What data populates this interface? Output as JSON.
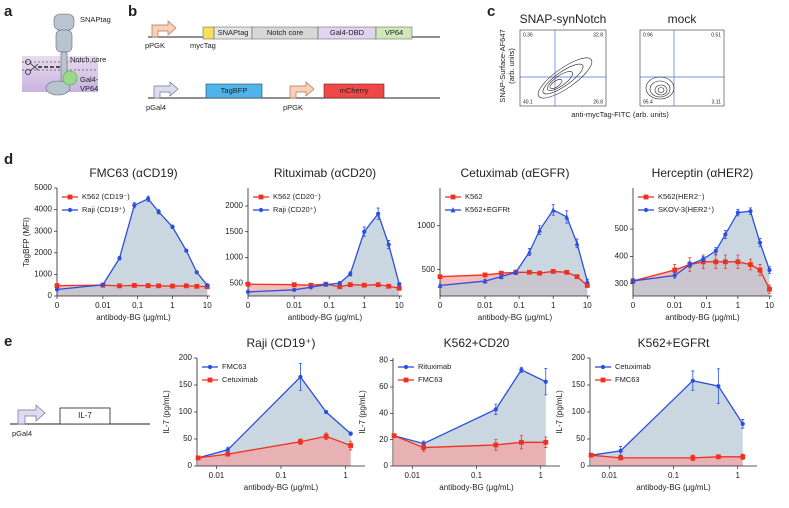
{
  "panel_labels": [
    "a",
    "b",
    "c",
    "d",
    "e"
  ],
  "panel_a": {
    "labels": [
      "SNAPtag",
      "Notch core",
      "Gal4-",
      "VP64"
    ]
  },
  "panel_b": {
    "top": [
      "pPGK",
      "mycTag",
      "SNAPtag",
      "Notch core",
      "Gal4-DBD",
      "VP64"
    ],
    "bottom": [
      "pGal4",
      "TagBFP",
      "pPGK",
      "mCherry"
    ]
  },
  "panel_c": {
    "titles": [
      "SNAP-synNotch",
      "mock"
    ],
    "ylabel": "SNAP-Surface-AF647",
    "ylabel2": "(arb. units)",
    "xlabel": "anti-mycTag-FITC (arb. units)",
    "left_quadrants": [
      "0.36",
      "32.8",
      "40.1",
      "26.8"
    ],
    "right_quadrants": [
      "0.96",
      "0.51",
      "95.4",
      "3.11"
    ]
  },
  "panel_e": {
    "labels": [
      "pGal4",
      "IL-7"
    ]
  },
  "chart_data": [
    {
      "type": "line",
      "title": "FMC63 (αCD19)",
      "xlabel": "antibody-BG (μg/mL)",
      "ylabel": "TagBFP (MFI)",
      "xscale": "log",
      "x": [
        0,
        0.01,
        0.03,
        0.08,
        0.2,
        0.4,
        1,
        2.5,
        5,
        10
      ],
      "xlim": [
        0,
        12
      ],
      "xticks": [
        0,
        0.01,
        0.1,
        1,
        10
      ],
      "ylim": [
        0,
        5000
      ],
      "yticks": [
        0,
        1000,
        2000,
        3000,
        4000,
        5000
      ],
      "legend": "upper left",
      "series": [
        {
          "name": "K562 (CD19⁻)",
          "color": "#f03020",
          "marker": "square",
          "values": [
            480,
            500,
            470,
            490,
            480,
            470,
            460,
            470,
            450,
            430
          ],
          "errors": [
            30,
            30,
            30,
            30,
            30,
            30,
            30,
            30,
            30,
            30
          ]
        },
        {
          "name": "Raji (CD19⁺)",
          "color": "#2b4fe0",
          "marker": "circle",
          "values": [
            300,
            520,
            1750,
            4200,
            4500,
            3900,
            3200,
            2100,
            1100,
            500
          ],
          "errors": [
            30,
            40,
            80,
            120,
            120,
            100,
            80,
            60,
            40,
            30
          ]
        }
      ]
    },
    {
      "type": "line",
      "title": "Rituximab (αCD20)",
      "xlabel": "antibody-BG (μg/mL)",
      "xscale": "log",
      "x": [
        0,
        0.01,
        0.03,
        0.08,
        0.2,
        0.4,
        1,
        2.5,
        5,
        10
      ],
      "xlim": [
        0,
        12
      ],
      "xticks": [
        0,
        0.01,
        0.1,
        1,
        10
      ],
      "ylim": [
        250,
        2350
      ],
      "yticks": [
        500,
        1000,
        1500,
        2000
      ],
      "legend": "upper left",
      "series": [
        {
          "name": "K562 (CD20⁻)",
          "color": "#f03020",
          "marker": "square",
          "values": [
            480,
            470,
            460,
            480,
            430,
            470,
            460,
            470,
            440,
            400
          ],
          "errors": [
            20,
            20,
            20,
            20,
            20,
            20,
            20,
            20,
            20,
            20
          ]
        },
        {
          "name": "Raji (CD20⁺)",
          "color": "#2b4fe0",
          "marker": "circle",
          "values": [
            330,
            370,
            420,
            470,
            500,
            680,
            1500,
            1850,
            1250,
            480
          ],
          "errors": [
            20,
            20,
            20,
            30,
            30,
            40,
            90,
            110,
            80,
            30
          ]
        }
      ]
    },
    {
      "type": "line",
      "title": "Cetuximab (αEGFR)",
      "xlabel": "antibody-BG (μg/mL)",
      "xscale": "log",
      "x": [
        0,
        0.01,
        0.03,
        0.08,
        0.2,
        0.4,
        1,
        2.5,
        5,
        10
      ],
      "xlim": [
        0,
        12
      ],
      "xticks": [
        0,
        0.01,
        0.1,
        1,
        10
      ],
      "ylim": [
        200,
        1430
      ],
      "yticks": [
        500,
        1000
      ],
      "legend": "upper left",
      "series": [
        {
          "name": "K562",
          "color": "#f03020",
          "marker": "square",
          "values": [
            420,
            440,
            460,
            470,
            470,
            460,
            480,
            470,
            420,
            320
          ],
          "errors": [
            15,
            15,
            15,
            15,
            15,
            15,
            15,
            15,
            15,
            15
          ]
        },
        {
          "name": "K562+EGFRt",
          "color": "#2b4fe0",
          "marker": "triangle",
          "values": [
            320,
            370,
            420,
            470,
            700,
            950,
            1180,
            1100,
            800,
            370
          ],
          "errors": [
            15,
            20,
            20,
            25,
            40,
            50,
            60,
            70,
            50,
            20
          ]
        }
      ]
    },
    {
      "type": "line",
      "title": "Herceptin (αHER2)",
      "xlabel": "antibody-BG (μg/mL)",
      "xscale": "log",
      "x": [
        0,
        0.01,
        0.03,
        0.08,
        0.2,
        0.4,
        1,
        2.5,
        5,
        10
      ],
      "xlim": [
        0,
        12
      ],
      "xticks": [
        0,
        0.01,
        0.1,
        1,
        10
      ],
      "ylim": [
        255,
        650
      ],
      "yticks": [
        300,
        400,
        500
      ],
      "legend": "upper left",
      "series": [
        {
          "name": "K562(HER2⁻)",
          "color": "#f03020",
          "marker": "square",
          "values": [
            310,
            350,
            370,
            380,
            380,
            380,
            380,
            370,
            350,
            280
          ],
          "errors": [
            8,
            20,
            25,
            25,
            25,
            25,
            25,
            20,
            20,
            15
          ]
        },
        {
          "name": "SKOV-3(HER2⁺)",
          "color": "#2b4fe0",
          "marker": "circle",
          "values": [
            310,
            330,
            370,
            390,
            420,
            480,
            560,
            565,
            450,
            350
          ],
          "errors": [
            8,
            10,
            10,
            10,
            12,
            15,
            12,
            12,
            15,
            12
          ]
        }
      ]
    },
    {
      "type": "line",
      "title": "Raji (CD19⁺)",
      "xlabel": "antibody-BG (μg/mL)",
      "ylabel": "IL-7 (pg/mL)",
      "xscale": "log",
      "x": [
        0.0052,
        0.015,
        0.2,
        0.5,
        1.2
      ],
      "xlim": [
        0.005,
        2
      ],
      "xticks": [
        0.01,
        0.1,
        1
      ],
      "ylim": [
        0,
        200
      ],
      "yticks": [
        0,
        50,
        100,
        150,
        200
      ],
      "legend": "upper left",
      "series": [
        {
          "name": "FMC63",
          "color": "#2b4fe0",
          "marker": "circle",
          "values": [
            15,
            30,
            165,
            100,
            60
          ],
          "errors": [
            2,
            5,
            25,
            3,
            3
          ]
        },
        {
          "name": "Cetuximab",
          "color": "#f03020",
          "marker": "square",
          "values": [
            15,
            22,
            45,
            55,
            38
          ],
          "errors": [
            2,
            3,
            5,
            6,
            8
          ]
        }
      ]
    },
    {
      "type": "line",
      "title": "K562+CD20",
      "xlabel": "antibody-BG (μg/mL)",
      "ylabel": "IL-7 (pg/mL)",
      "xscale": "log",
      "x": [
        0.0052,
        0.015,
        0.2,
        0.5,
        1.2
      ],
      "xlim": [
        0.005,
        2
      ],
      "xticks": [
        0.01,
        0.1,
        1
      ],
      "ylim": [
        0,
        82
      ],
      "yticks": [
        0,
        20,
        40,
        60,
        80
      ],
      "legend": "upper left",
      "series": [
        {
          "name": "Rituximab",
          "color": "#2b4fe0",
          "marker": "circle",
          "values": [
            23,
            17,
            43,
            73,
            64
          ],
          "errors": [
            1,
            2,
            4,
            2,
            10
          ]
        },
        {
          "name": "FMC63",
          "color": "#f03020",
          "marker": "square",
          "values": [
            23,
            14,
            16,
            18,
            18
          ],
          "errors": [
            1,
            3,
            4,
            5,
            4
          ]
        }
      ]
    },
    {
      "type": "line",
      "title": "K562+EGFRt",
      "xlabel": "antibody-BG (μg/mL)",
      "ylabel": "IL-7 (pg/mL)",
      "xscale": "log",
      "x": [
        0.0052,
        0.015,
        0.2,
        0.5,
        1.2
      ],
      "xlim": [
        0.005,
        2
      ],
      "xticks": [
        0.01,
        0.1,
        1
      ],
      "ylim": [
        0,
        200
      ],
      "yticks": [
        0,
        50,
        100,
        150,
        200
      ],
      "legend": "upper left",
      "series": [
        {
          "name": "Cetuximab",
          "color": "#2b4fe0",
          "marker": "circle",
          "values": [
            20,
            28,
            158,
            148,
            78
          ],
          "errors": [
            2,
            8,
            18,
            32,
            8
          ]
        },
        {
          "name": "FMC63",
          "color": "#f03020",
          "marker": "square",
          "values": [
            20,
            15,
            15,
            17,
            17
          ],
          "errors": [
            2,
            3,
            5,
            3,
            5
          ]
        }
      ]
    }
  ]
}
